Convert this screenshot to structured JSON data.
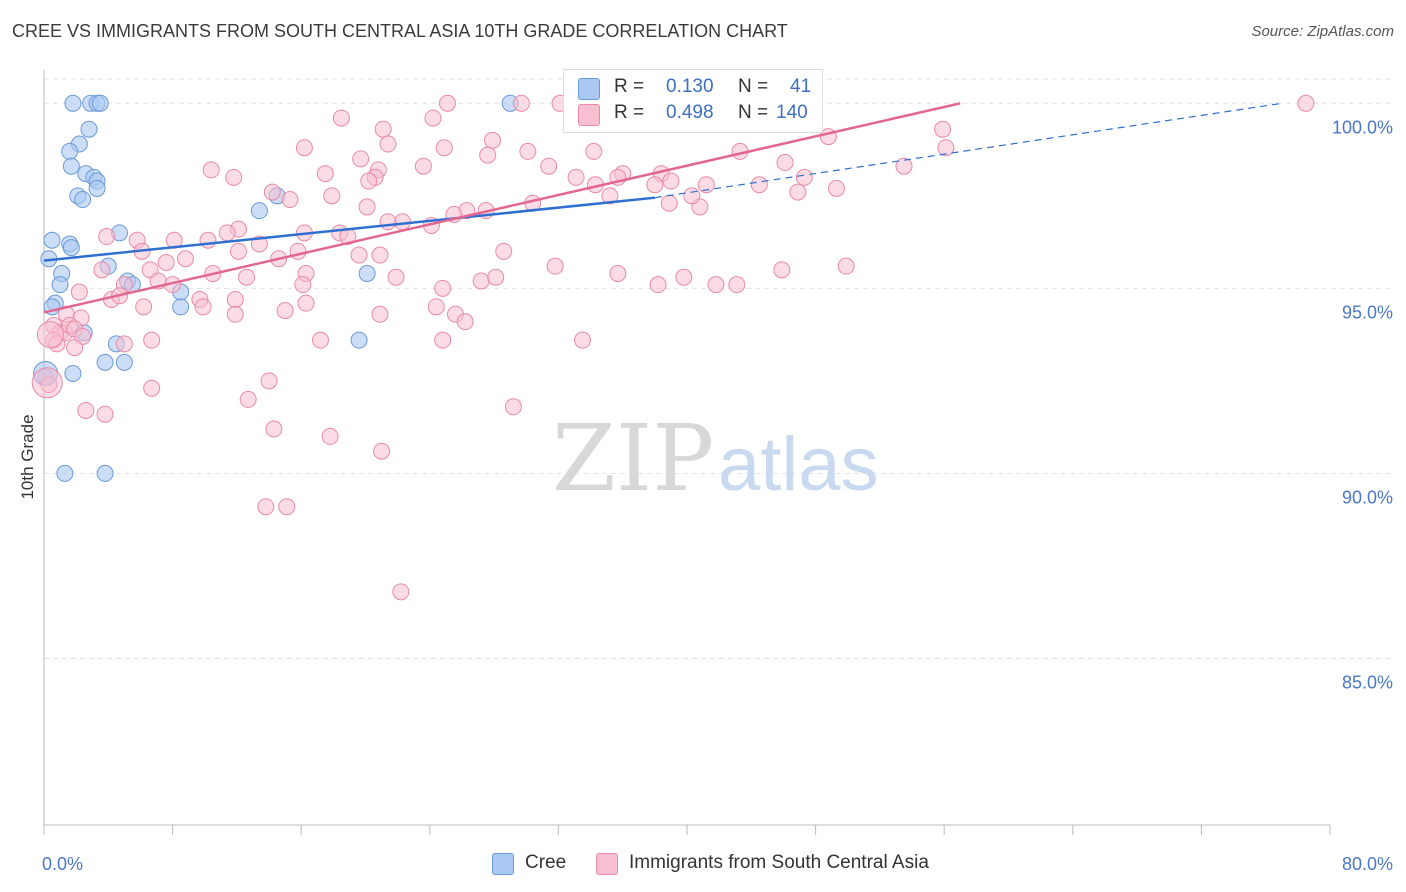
{
  "title": "CREE VS IMMIGRANTS FROM SOUTH CENTRAL ASIA 10TH GRADE CORRELATION CHART",
  "source": "Source: ZipAtlas.com",
  "watermark": {
    "zip": "ZIP",
    "atlas": "atlas"
  },
  "legend": {
    "r_label": "R =",
    "n_label": "N =",
    "rows": [
      {
        "r": "0.130",
        "n": "41"
      },
      {
        "r": "0.498",
        "n": "140"
      }
    ]
  },
  "colors": {
    "cree_fill": "#aac8f2",
    "cree_stroke": "#6a9ad8",
    "cree_line": "#2f6fd0",
    "imm_fill": "#f7bfd0",
    "imm_stroke": "#e88aa8",
    "imm_line": "#e2668f",
    "tick_text": "#4a78c8",
    "grid": "#e3e3e3"
  },
  "chart_data": {
    "type": "scatter",
    "title": "CREE VS IMMIGRANTS FROM SOUTH CENTRAL ASIA 10TH GRADE CORRELATION CHART",
    "xlabel": "",
    "ylabel": "10th Grade",
    "xlim": [
      0,
      80
    ],
    "ylim": [
      80.5,
      100.9
    ],
    "x_tick_labels": [
      "0.0%",
      "80.0%"
    ],
    "y_ticks": [
      85,
      90,
      95,
      100
    ],
    "y_tick_labels": [
      "85.0%",
      "90.0%",
      "95.0%",
      "100.0%"
    ],
    "grid": true,
    "legend_placement": "top-center",
    "series": [
      {
        "name": "Cree",
        "r": 0.13,
        "n": 41,
        "trend": {
          "x": [
            0,
            38
          ],
          "y": [
            95.75,
            97.45
          ],
          "dashed_to": [
            77,
            100.0
          ]
        },
        "points": [
          [
            2.9,
            100.0
          ],
          [
            3.3,
            100.0
          ],
          [
            3.5,
            100.0
          ],
          [
            1.8,
            100.0
          ],
          [
            2.8,
            99.3
          ],
          [
            2.2,
            98.9
          ],
          [
            1.6,
            98.7
          ],
          [
            1.7,
            98.3
          ],
          [
            2.6,
            98.1
          ],
          [
            3.1,
            98.0
          ],
          [
            3.3,
            97.9
          ],
          [
            3.3,
            97.7
          ],
          [
            2.1,
            97.5
          ],
          [
            2.4,
            97.4
          ],
          [
            14.5,
            97.5
          ],
          [
            13.4,
            97.1
          ],
          [
            4.7,
            96.5
          ],
          [
            0.5,
            96.3
          ],
          [
            1.6,
            96.2
          ],
          [
            1.7,
            96.1
          ],
          [
            0.3,
            95.8
          ],
          [
            4.0,
            95.6
          ],
          [
            20.1,
            95.4
          ],
          [
            1.1,
            95.4
          ],
          [
            5.2,
            95.2
          ],
          [
            5.5,
            95.1
          ],
          [
            1.0,
            95.1
          ],
          [
            8.5,
            94.9
          ],
          [
            0.7,
            94.6
          ],
          [
            0.5,
            94.5
          ],
          [
            8.5,
            94.5
          ],
          [
            2.5,
            93.8
          ],
          [
            4.5,
            93.5
          ],
          [
            19.6,
            93.6
          ],
          [
            5.0,
            93.0
          ],
          [
            3.8,
            93.0
          ],
          [
            1.8,
            92.7
          ],
          [
            0.1,
            92.6
          ],
          [
            1.3,
            90.0
          ],
          [
            3.8,
            90.0
          ],
          [
            29.0,
            100.0
          ]
        ]
      },
      {
        "name": "Immigrants from South Central Asia",
        "r": 0.498,
        "n": 140,
        "trend": {
          "x": [
            0,
            57
          ],
          "y": [
            94.35,
            100.0
          ]
        },
        "points": [
          [
            25.1,
            100.0
          ],
          [
            29.7,
            100.0
          ],
          [
            32.1,
            100.0
          ],
          [
            41.7,
            100.0
          ],
          [
            39.7,
            100.0
          ],
          [
            78.5,
            100.0
          ],
          [
            36.8,
            100.0
          ],
          [
            18.5,
            99.6
          ],
          [
            24.2,
            99.6
          ],
          [
            21.1,
            99.3
          ],
          [
            27.9,
            99.0
          ],
          [
            21.4,
            98.9
          ],
          [
            16.2,
            98.8
          ],
          [
            24.9,
            98.8
          ],
          [
            19.7,
            98.5
          ],
          [
            34.2,
            98.7
          ],
          [
            30.1,
            98.7
          ],
          [
            27.6,
            98.6
          ],
          [
            23.6,
            98.3
          ],
          [
            31.4,
            98.3
          ],
          [
            20.8,
            98.2
          ],
          [
            33.1,
            98.0
          ],
          [
            20.6,
            98.0
          ],
          [
            10.4,
            98.2
          ],
          [
            17.5,
            98.1
          ],
          [
            11.8,
            98.0
          ],
          [
            20.2,
            97.9
          ],
          [
            36.0,
            98.1
          ],
          [
            38.4,
            98.1
          ],
          [
            38.0,
            97.8
          ],
          [
            35.7,
            98.0
          ],
          [
            39.0,
            97.9
          ],
          [
            34.3,
            97.8
          ],
          [
            35.2,
            97.5
          ],
          [
            14.2,
            97.6
          ],
          [
            17.9,
            97.5
          ],
          [
            15.3,
            97.4
          ],
          [
            20.1,
            97.2
          ],
          [
            26.3,
            97.1
          ],
          [
            30.4,
            97.3
          ],
          [
            38.9,
            97.3
          ],
          [
            40.8,
            97.2
          ],
          [
            27.5,
            97.1
          ],
          [
            25.5,
            97.0
          ],
          [
            22.3,
            96.8
          ],
          [
            21.4,
            96.8
          ],
          [
            24.1,
            96.7
          ],
          [
            12.1,
            96.6
          ],
          [
            11.4,
            96.5
          ],
          [
            16.2,
            96.5
          ],
          [
            18.4,
            96.5
          ],
          [
            18.9,
            96.4
          ],
          [
            10.2,
            96.3
          ],
          [
            8.1,
            96.3
          ],
          [
            5.8,
            96.3
          ],
          [
            3.9,
            96.4
          ],
          [
            13.4,
            96.2
          ],
          [
            15.8,
            96.0
          ],
          [
            12.1,
            96.0
          ],
          [
            19.6,
            95.9
          ],
          [
            20.9,
            95.9
          ],
          [
            28.6,
            96.0
          ],
          [
            6.1,
            96.0
          ],
          [
            8.8,
            95.8
          ],
          [
            14.6,
            95.8
          ],
          [
            7.6,
            95.7
          ],
          [
            3.6,
            95.5
          ],
          [
            6.6,
            95.5
          ],
          [
            16.3,
            95.4
          ],
          [
            12.6,
            95.3
          ],
          [
            8.0,
            95.1
          ],
          [
            7.1,
            95.2
          ],
          [
            5.0,
            95.1
          ],
          [
            10.5,
            95.4
          ],
          [
            16.1,
            95.1
          ],
          [
            21.9,
            95.3
          ],
          [
            24.8,
            95.0
          ],
          [
            27.2,
            95.2
          ],
          [
            28.1,
            95.3
          ],
          [
            31.8,
            95.6
          ],
          [
            35.7,
            95.4
          ],
          [
            39.8,
            95.3
          ],
          [
            38.2,
            95.1
          ],
          [
            43.1,
            95.1
          ],
          [
            45.9,
            95.5
          ],
          [
            49.9,
            95.6
          ],
          [
            41.8,
            95.1
          ],
          [
            2.2,
            94.9
          ],
          [
            4.2,
            94.7
          ],
          [
            4.7,
            94.8
          ],
          [
            9.7,
            94.7
          ],
          [
            11.9,
            94.7
          ],
          [
            6.2,
            94.5
          ],
          [
            9.9,
            94.5
          ],
          [
            11.9,
            94.3
          ],
          [
            15.0,
            94.4
          ],
          [
            16.3,
            94.6
          ],
          [
            20.9,
            94.3
          ],
          [
            24.4,
            94.5
          ],
          [
            25.6,
            94.3
          ],
          [
            26.2,
            94.1
          ],
          [
            1.4,
            94.3
          ],
          [
            2.3,
            94.2
          ],
          [
            0.6,
            94.0
          ],
          [
            1.0,
            93.8
          ],
          [
            1.3,
            93.8
          ],
          [
            1.6,
            94.0
          ],
          [
            1.9,
            93.9
          ],
          [
            2.4,
            93.7
          ],
          [
            0.6,
            93.6
          ],
          [
            0.8,
            93.5
          ],
          [
            5.0,
            93.5
          ],
          [
            6.7,
            93.6
          ],
          [
            17.2,
            93.6
          ],
          [
            24.8,
            93.6
          ],
          [
            33.5,
            93.6
          ],
          [
            1.9,
            93.4
          ],
          [
            0.3,
            92.4
          ],
          [
            6.7,
            92.3
          ],
          [
            12.7,
            92.0
          ],
          [
            14.0,
            92.5
          ],
          [
            2.6,
            91.7
          ],
          [
            3.8,
            91.6
          ],
          [
            14.3,
            91.2
          ],
          [
            17.8,
            91.0
          ],
          [
            21.0,
            90.6
          ],
          [
            29.2,
            91.8
          ],
          [
            13.8,
            89.1
          ],
          [
            15.1,
            89.1
          ],
          [
            22.2,
            86.8
          ],
          [
            43.3,
            98.7
          ],
          [
            46.1,
            98.4
          ],
          [
            47.3,
            98.0
          ],
          [
            41.2,
            97.8
          ],
          [
            40.3,
            97.5
          ],
          [
            44.5,
            97.8
          ],
          [
            46.9,
            97.6
          ],
          [
            49.3,
            97.7
          ],
          [
            53.5,
            98.3
          ],
          [
            56.1,
            98.8
          ],
          [
            55.9,
            99.3
          ],
          [
            48.8,
            99.1
          ]
        ]
      }
    ]
  },
  "bottom_legend": [
    {
      "label": "Cree"
    },
    {
      "label": "Immigrants from South Central Asia"
    }
  ]
}
